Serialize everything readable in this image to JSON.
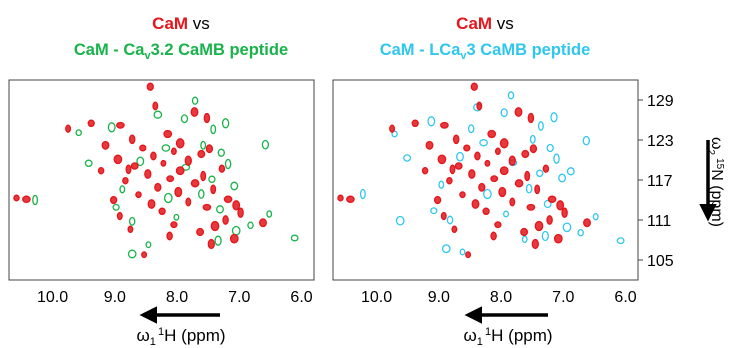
{
  "colors": {
    "reference": "#e3161b",
    "green": "#18b34a",
    "cyan": "#2fc7ee",
    "axis": "#000000"
  },
  "chart_data": [
    {
      "type": "scatter",
      "title": {
        "ref": "CaM",
        "vs": " vs",
        "line2_a": "CaM - Ca",
        "line2_sub": "v",
        "line2_b": "3.2 CaMB peptide"
      },
      "xlabel": {
        "omega": "ω",
        "sub": "1",
        "sup": "1",
        "rest": "H (ppm)"
      },
      "xlim": [
        10.7,
        5.8
      ],
      "ylim": [
        132,
        102
      ],
      "x_ticks": [
        "10.0",
        "9.0",
        "8.0",
        "7.0",
        "6.0"
      ],
      "x_tick_values": [
        10.0,
        9.0,
        8.0,
        7.0,
        6.0
      ],
      "series": [
        {
          "name": "CaM",
          "color": "#e3161b",
          "points": [
            [
              8.53,
              105.8
            ],
            [
              7.45,
              107.4
            ],
            [
              7.08,
              108.2
            ],
            [
              8.12,
              108.6
            ],
            [
              7.63,
              109.2
            ],
            [
              8.75,
              109.6
            ],
            [
              8.05,
              110.3
            ],
            [
              7.39,
              110.1
            ],
            [
              7.22,
              111.0
            ],
            [
              6.62,
              110.6
            ],
            [
              8.92,
              111.6
            ],
            [
              8.24,
              112.3
            ],
            [
              7.52,
              112.9
            ],
            [
              6.98,
              112.1
            ],
            [
              8.41,
              113.4
            ],
            [
              7.82,
              113.7
            ],
            [
              9.02,
              114.0
            ],
            [
              7.18,
              114.1
            ],
            [
              8.62,
              114.8
            ],
            [
              7.98,
              115.2
            ],
            [
              7.42,
              115.6
            ],
            [
              8.31,
              115.9
            ],
            [
              7.71,
              116.5
            ],
            [
              8.83,
              116.9
            ],
            [
              8.11,
              117.2
            ],
            [
              7.58,
              117.6
            ],
            [
              8.47,
              117.9
            ],
            [
              7.95,
              118.4
            ],
            [
              7.28,
              118.7
            ],
            [
              8.68,
              119.1
            ],
            [
              8.22,
              119.5
            ],
            [
              7.82,
              119.9
            ],
            [
              8.95,
              120.1
            ],
            [
              8.38,
              120.6
            ],
            [
              7.61,
              120.9
            ],
            [
              8.05,
              121.3
            ],
            [
              8.55,
              121.8
            ],
            [
              7.95,
              122.5
            ],
            [
              8.72,
              123.1
            ],
            [
              9.15,
              122.2
            ],
            [
              9.75,
              124.7
            ],
            [
              9.38,
              125.5
            ],
            [
              8.91,
              125.2
            ],
            [
              7.52,
              126.3
            ],
            [
              7.72,
              127.2
            ],
            [
              8.35,
              128.1
            ],
            [
              8.43,
              131.0
            ],
            [
              10.42,
              114.1
            ],
            [
              10.58,
              114.3
            ],
            [
              7.05,
              113.2
            ],
            [
              8.78,
              118.6
            ],
            [
              7.48,
              121.7
            ],
            [
              8.15,
              123.9
            ],
            [
              9.22,
              118.4
            ]
          ]
        },
        {
          "name": "CaM - CaV3.2 CaMB peptide",
          "color": "#18b34a",
          "points": [
            [
              8.46,
              107.3
            ],
            [
              7.34,
              107.9
            ],
            [
              7.05,
              109.4
            ],
            [
              8.72,
              110.8
            ],
            [
              7.31,
              112.6
            ],
            [
              6.52,
              111.9
            ],
            [
              8.98,
              112.9
            ],
            [
              8.14,
              114.3
            ],
            [
              7.61,
              114.9
            ],
            [
              7.08,
              116.1
            ],
            [
              8.88,
              115.6
            ],
            [
              7.44,
              117.1
            ],
            [
              7.86,
              118.9
            ],
            [
              7.18,
              119.4
            ],
            [
              8.59,
              119.8
            ],
            [
              7.58,
              122.2
            ],
            [
              7.29,
              121.1
            ],
            [
              8.18,
              121.8
            ],
            [
              9.58,
              124.1
            ],
            [
              9.05,
              124.9
            ],
            [
              7.42,
              124.6
            ],
            [
              7.88,
              126.2
            ],
            [
              8.31,
              126.8
            ],
            [
              6.82,
              110.2
            ],
            [
              6.11,
              108.3
            ],
            [
              10.28,
              114.0
            ],
            [
              6.58,
              122.3
            ],
            [
              8.72,
              105.9
            ],
            [
              7.71,
              128.9
            ],
            [
              9.42,
              119.5
            ],
            [
              8.01,
              111.4
            ],
            [
              7.22,
              125.5
            ]
          ]
        }
      ]
    },
    {
      "type": "scatter",
      "title": {
        "ref": "CaM",
        "vs": " vs",
        "line2_a": "CaM - LCa",
        "line2_sub": "v",
        "line2_b": "3 CaMB peptide"
      },
      "xlabel": {
        "omega": "ω",
        "sub": "1",
        "sup": "1",
        "rest": "H (ppm)"
      },
      "ylabel": {
        "omega": "ω",
        "sub": "2",
        "sup": "15",
        "rest": "N (ppm)"
      },
      "xlim": [
        10.7,
        5.8
      ],
      "ylim": [
        132,
        102
      ],
      "x_ticks": [
        "10.0",
        "9.0",
        "8.0",
        "7.0",
        "6.0"
      ],
      "x_tick_values": [
        10.0,
        9.0,
        8.0,
        7.0,
        6.0
      ],
      "y_ticks": [
        "105",
        "111",
        "117",
        "123",
        "129"
      ],
      "y_tick_values": [
        105,
        111,
        117,
        123,
        129
      ],
      "series": [
        {
          "name": "CaM",
          "color": "#e3161b",
          "points": [
            [
              8.53,
              105.8
            ],
            [
              7.45,
              107.4
            ],
            [
              7.08,
              108.2
            ],
            [
              8.12,
              108.6
            ],
            [
              7.63,
              109.2
            ],
            [
              8.75,
              109.6
            ],
            [
              8.05,
              110.3
            ],
            [
              7.39,
              110.1
            ],
            [
              7.22,
              111.0
            ],
            [
              6.62,
              110.6
            ],
            [
              8.92,
              111.6
            ],
            [
              8.24,
              112.3
            ],
            [
              7.52,
              112.9
            ],
            [
              6.98,
              112.1
            ],
            [
              8.41,
              113.4
            ],
            [
              7.82,
              113.7
            ],
            [
              9.02,
              114.0
            ],
            [
              7.18,
              114.1
            ],
            [
              8.62,
              114.8
            ],
            [
              7.98,
              115.2
            ],
            [
              7.42,
              115.6
            ],
            [
              8.31,
              115.9
            ],
            [
              7.71,
              116.5
            ],
            [
              8.83,
              116.9
            ],
            [
              8.11,
              117.2
            ],
            [
              7.58,
              117.6
            ],
            [
              8.47,
              117.9
            ],
            [
              7.95,
              118.4
            ],
            [
              7.28,
              118.7
            ],
            [
              8.68,
              119.1
            ],
            [
              8.22,
              119.5
            ],
            [
              7.82,
              119.9
            ],
            [
              8.95,
              120.1
            ],
            [
              8.38,
              120.6
            ],
            [
              7.61,
              120.9
            ],
            [
              8.05,
              121.3
            ],
            [
              8.55,
              121.8
            ],
            [
              7.95,
              122.5
            ],
            [
              8.72,
              123.1
            ],
            [
              9.15,
              122.2
            ],
            [
              9.75,
              124.7
            ],
            [
              9.38,
              125.5
            ],
            [
              8.91,
              125.2
            ],
            [
              7.52,
              126.3
            ],
            [
              7.72,
              127.2
            ],
            [
              8.35,
              128.1
            ],
            [
              8.43,
              131.0
            ],
            [
              10.42,
              114.1
            ],
            [
              10.58,
              114.3
            ],
            [
              7.05,
              113.2
            ],
            [
              8.78,
              118.6
            ],
            [
              7.48,
              121.7
            ],
            [
              8.15,
              123.9
            ],
            [
              9.22,
              118.4
            ]
          ]
        },
        {
          "name": "CaM - LCaV3 CaMB peptide",
          "color": "#2fc7ee",
          "points": [
            [
              8.62,
              106.2
            ],
            [
              7.29,
              108.6
            ],
            [
              6.94,
              109.9
            ],
            [
              8.82,
              111.0
            ],
            [
              7.25,
              113.4
            ],
            [
              6.48,
              111.5
            ],
            [
              9.08,
              112.4
            ],
            [
              8.22,
              114.9
            ],
            [
              7.55,
              115.7
            ],
            [
              7.02,
              117.3
            ],
            [
              8.96,
              116.3
            ],
            [
              7.38,
              118.0
            ],
            [
              7.81,
              119.6
            ],
            [
              7.11,
              120.2
            ],
            [
              8.66,
              120.5
            ],
            [
              7.49,
              123.1
            ],
            [
              7.21,
              121.8
            ],
            [
              8.28,
              122.6
            ],
            [
              9.71,
              123.9
            ],
            [
              9.12,
              125.8
            ],
            [
              7.36,
              125.1
            ],
            [
              7.95,
              127.1
            ],
            [
              8.38,
              127.9
            ],
            [
              6.72,
              109.1
            ],
            [
              6.08,
              107.9
            ],
            [
              10.22,
              114.9
            ],
            [
              6.63,
              122.9
            ],
            [
              8.88,
              106.7
            ],
            [
              7.84,
              129.7
            ],
            [
              9.51,
              120.3
            ],
            [
              7.92,
              111.9
            ],
            [
              7.15,
              126.4
            ],
            [
              9.62,
              110.9
            ],
            [
              8.48,
              124.7
            ],
            [
              6.88,
              118.3
            ],
            [
              7.62,
              108.1
            ]
          ]
        }
      ]
    }
  ]
}
